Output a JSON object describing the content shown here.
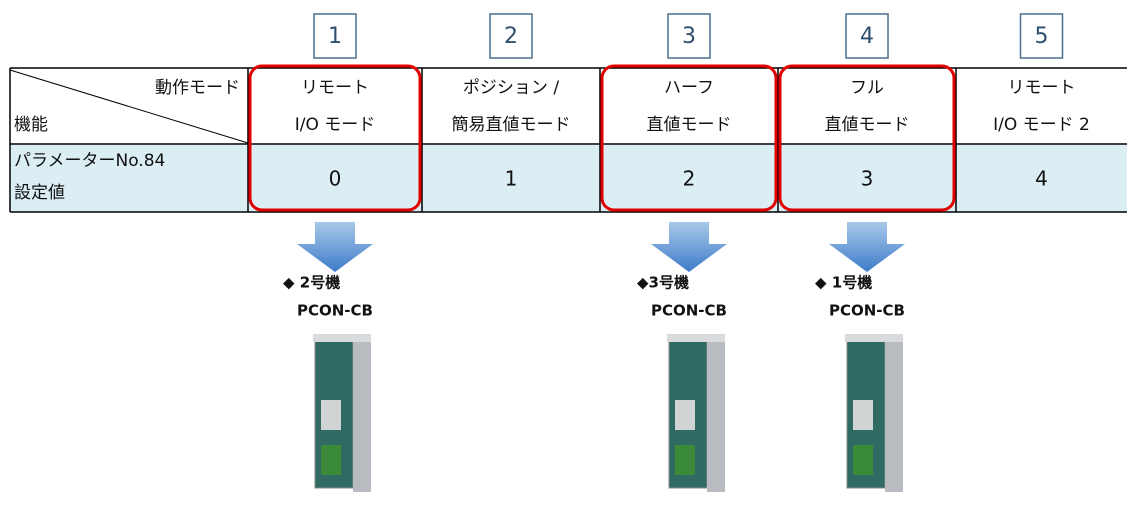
{
  "column_numbers": [
    "1",
    "2",
    "3",
    "4",
    "5"
  ],
  "header": {
    "mode_label": "動作モード",
    "function_label": "機能"
  },
  "modes": [
    [
      "リモート",
      "I/O モード"
    ],
    [
      "ポジション /",
      "簡易直値モード"
    ],
    [
      "ハーフ",
      "直値モード"
    ],
    [
      "フル",
      "直値モード"
    ],
    [
      "リモート",
      "I/O モード 2"
    ]
  ],
  "setting_label": [
    "パラメーターNo.84",
    "設定値"
  ],
  "settings": [
    0,
    1,
    2,
    3,
    4
  ],
  "devices": [
    {
      "column": 0,
      "label": "◆ 2号機",
      "model": "PCON-CB"
    },
    {
      "column": 2,
      "label": "◆3号機",
      "model": "PCON-CB"
    },
    {
      "column": 3,
      "label": "◆ 1号機",
      "model": "PCON-CB"
    }
  ]
}
